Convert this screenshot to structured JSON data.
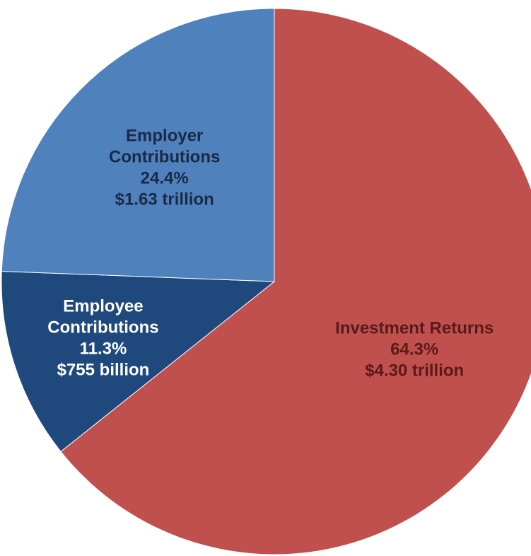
{
  "chart_data": {
    "type": "pie",
    "title": "",
    "start_angle_deg": 0,
    "direction": "clockwise",
    "slices": [
      {
        "label": "Investment Returns",
        "percent": 64.3,
        "percent_text": "64.3%",
        "amount_text": "$4.30 trillion",
        "color": "#c0504d",
        "text_color": "#5a1a18",
        "label_lines": [
          "Investment Returns"
        ]
      },
      {
        "label": "Employee Contributions",
        "percent": 11.3,
        "percent_text": "11.3%",
        "amount_text": "$755 billion",
        "color": "#1f497d",
        "text_color": "#ffffff",
        "label_lines": [
          "Employee",
          "Contributions"
        ]
      },
      {
        "label": "Employer Contributions",
        "percent": 24.4,
        "percent_text": "24.4%",
        "amount_text": "$1.63 trillion",
        "color": "#4f81bd",
        "text_color": "#1a2a45",
        "label_lines": [
          "Employer",
          "Contributions"
        ]
      }
    ]
  }
}
